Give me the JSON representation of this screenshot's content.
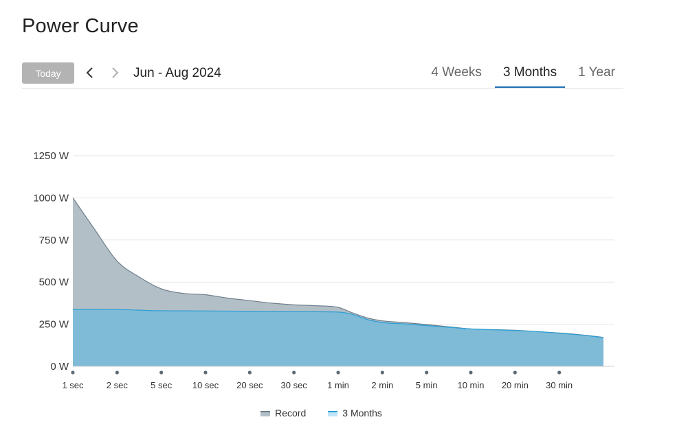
{
  "page": {
    "title": "Power Curve"
  },
  "controls": {
    "today_label": "Today",
    "prev_icon": "chevron-left-icon",
    "next_icon": "chevron-right-icon",
    "date_range": "Jun - Aug 2024",
    "tabs": [
      {
        "label": "4 Weeks",
        "active": false
      },
      {
        "label": "3 Months",
        "active": true
      },
      {
        "label": "1 Year",
        "active": false
      }
    ]
  },
  "colors": {
    "record_fill": "#b3bfc7",
    "record_line": "#6f7f8b",
    "months_fill": "#7fbad7",
    "months_line": "#2a9fd6",
    "axis_dot": "#5d6b76",
    "grid": "#e6e6e6",
    "active_tab": "#1f6fb5"
  },
  "chart_data": {
    "type": "area",
    "title": "",
    "xlabel": "",
    "ylabel": "",
    "y_unit": "W",
    "ylim": [
      0,
      1250
    ],
    "y_ticks": [
      0,
      250,
      500,
      750,
      1000,
      1250
    ],
    "y_tick_labels": [
      "0 W",
      "250 W",
      "500 W",
      "750 W",
      "1000 W",
      "1250 W"
    ],
    "x_tick_labels": [
      "1 sec",
      "2 sec",
      "5 sec",
      "10 sec",
      "20 sec",
      "30 sec",
      "1 min",
      "2 min",
      "5 min",
      "10 min",
      "20 min",
      "30 min"
    ],
    "grid": true,
    "legend": "bottom",
    "series": [
      {
        "name": "Record",
        "x": [
          0,
          0.5,
          1,
          1.5,
          2,
          2.5,
          3,
          3.5,
          4,
          4.5,
          5,
          5.5,
          6,
          6.3,
          6.7,
          7,
          7.5,
          8,
          8.5,
          9,
          9.5,
          10,
          10.5,
          11,
          11.5,
          12
        ],
        "values": [
          1000,
          810,
          625,
          530,
          460,
          433,
          425,
          405,
          390,
          375,
          365,
          360,
          350,
          320,
          285,
          270,
          260,
          248,
          235,
          222,
          218,
          214,
          206,
          198,
          187,
          172
        ]
      },
      {
        "name": "3 Months",
        "x": [
          0,
          1,
          2,
          3,
          4,
          5,
          5.5,
          6,
          6.3,
          6.7,
          7,
          7.5,
          8,
          8.5,
          9,
          9.5,
          10,
          10.5,
          11,
          11.5,
          12
        ],
        "values": [
          338,
          337,
          330,
          329,
          326,
          324,
          324,
          322,
          310,
          275,
          260,
          252,
          242,
          232,
          222,
          217,
          213,
          206,
          197,
          186,
          171
        ]
      }
    ]
  }
}
